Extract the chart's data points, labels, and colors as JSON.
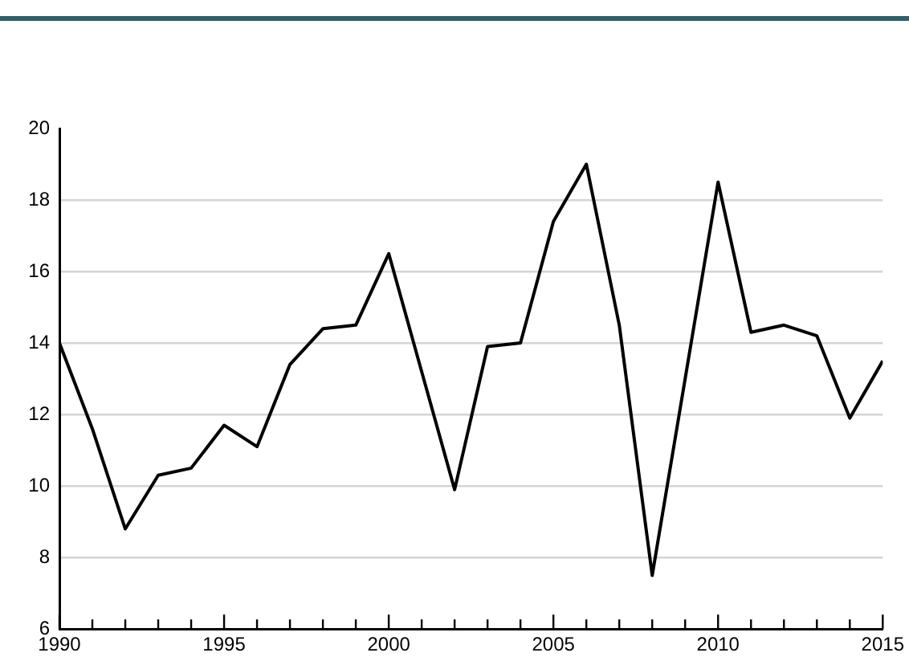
{
  "chart_data": {
    "type": "line",
    "x": [
      1990,
      1991,
      1992,
      1993,
      1994,
      1995,
      1996,
      1997,
      1998,
      1999,
      2000,
      2001,
      2002,
      2003,
      2004,
      2005,
      2006,
      2007,
      2008,
      2009,
      2010,
      2011,
      2012,
      2013,
      2014,
      2015
    ],
    "series": [
      {
        "color": "#000000",
        "values": [
          14.0,
          11.6,
          8.8,
          10.3,
          10.5,
          11.7,
          11.1,
          13.4,
          14.4,
          14.5,
          16.5,
          13.2,
          9.9,
          13.9,
          14.0,
          17.4,
          19.0,
          14.5,
          7.5,
          13.0,
          18.5,
          14.3,
          14.5,
          14.2,
          11.9,
          13.5
        ]
      }
    ],
    "xlim": [
      1990,
      2015
    ],
    "xticks": [
      1990,
      {
        "value": 1991,
        "label": null
      },
      {
        "value": 1992,
        "label": null
      },
      {
        "value": 1993,
        "label": null
      },
      {
        "value": 1994,
        "label": null
      },
      1995,
      {
        "value": 1996,
        "label": null
      },
      {
        "value": 1997,
        "label": null
      },
      {
        "value": 1998,
        "label": null
      },
      {
        "value": 1999,
        "label": null
      },
      2000,
      {
        "value": 2001,
        "label": null
      },
      {
        "value": 2002,
        "label": null
      },
      {
        "value": 2003,
        "label": null
      },
      {
        "value": 2004,
        "label": null
      },
      2005,
      {
        "value": 2006,
        "label": null
      },
      {
        "value": 2007,
        "label": null
      },
      {
        "value": 2008,
        "label": null
      },
      {
        "value": 2009,
        "label": null
      },
      2010,
      {
        "value": 2011,
        "label": null
      },
      {
        "value": 2012,
        "label": null
      },
      {
        "value": 2013,
        "label": null
      },
      {
        "value": 2014,
        "label": null
      },
      2015
    ],
    "ylim": [
      6,
      20
    ],
    "yticks": [
      6,
      8,
      10,
      12,
      14,
      16,
      18,
      20
    ],
    "grid": "y",
    "legend": false,
    "marker": "none",
    "line_style": "solid"
  }
}
